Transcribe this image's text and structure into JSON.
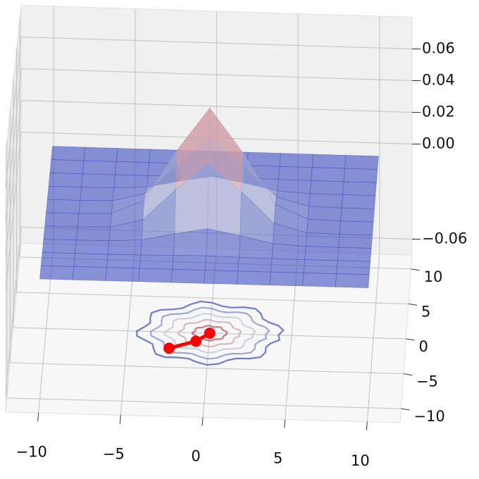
{
  "chart_data": {
    "type": "surface3d",
    "x": [
      -10,
      -8,
      -6,
      -4,
      -2,
      0,
      2,
      4,
      6,
      8,
      10
    ],
    "y": [
      -10,
      -8,
      -6,
      -4,
      -2,
      0,
      2,
      4,
      6,
      8,
      10
    ],
    "z": [
      [
        0,
        0,
        0,
        0,
        0,
        0,
        0,
        0,
        0,
        0,
        0
      ],
      [
        0,
        0,
        0,
        0,
        0,
        0,
        0,
        0,
        0,
        0,
        0
      ],
      [
        0,
        0,
        0,
        0.0001,
        0.0004,
        0.0007,
        0.0004,
        0.0001,
        0,
        0,
        0
      ],
      [
        0,
        0,
        0.0001,
        0.0012,
        0.0054,
        0.0089,
        0.0054,
        0.0012,
        0.0001,
        0,
        0
      ],
      [
        0,
        0,
        0.0004,
        0.0054,
        0.024,
        0.04,
        0.024,
        0.0054,
        0.0004,
        0,
        0
      ],
      [
        0,
        0,
        0.0007,
        0.0089,
        0.04,
        0.066,
        0.04,
        0.0089,
        0.0007,
        0,
        0
      ],
      [
        0,
        0,
        0.0004,
        0.0054,
        0.024,
        0.04,
        0.024,
        0.0054,
        0.0004,
        0,
        0
      ],
      [
        0,
        0,
        0.0001,
        0.0012,
        0.0054,
        0.0089,
        0.0054,
        0.0012,
        0.0001,
        0,
        0
      ],
      [
        0,
        0,
        0,
        0.0001,
        0.0004,
        0.0007,
        0.0004,
        0.0001,
        0,
        0,
        0
      ],
      [
        0,
        0,
        0,
        0,
        0,
        0,
        0,
        0,
        0,
        0,
        0
      ],
      [
        0,
        0,
        0,
        0,
        0,
        0,
        0,
        0,
        0,
        0,
        0
      ]
    ],
    "xlim": [
      -12,
      12
    ],
    "ylim": [
      -12,
      12
    ],
    "zlim": [
      -0.07,
      0.08
    ],
    "xticks": [
      {
        "value": -10,
        "label": "−10"
      },
      {
        "value": -5,
        "label": "−5"
      },
      0,
      5,
      10
    ],
    "yticks": [
      {
        "value": -10,
        "label": "−10"
      },
      {
        "value": -5,
        "label": "−5"
      },
      0,
      5,
      10
    ],
    "zticks": [
      {
        "value": -0.06,
        "label": "−0.06"
      },
      {
        "value": 0,
        "label": "0.00"
      },
      0.02,
      0.04,
      0.06
    ],
    "colormap": [
      "#3b4cc0",
      "#dddddd",
      "#b40426"
    ],
    "path": {
      "x": [
        -2.4,
        -0.8,
        0
      ],
      "y": [
        -2.3,
        -1.2,
        0
      ],
      "color": "#ff0000"
    },
    "grid": true
  }
}
